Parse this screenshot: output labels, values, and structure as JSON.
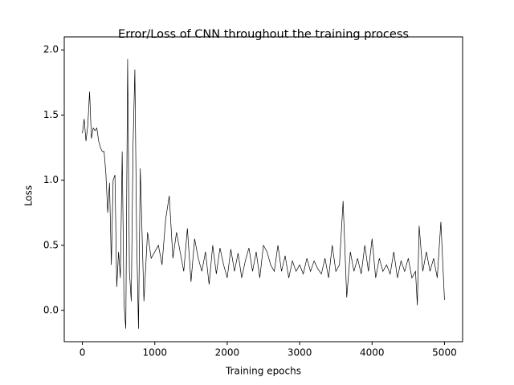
{
  "chart_data": {
    "type": "line",
    "title": "Error/Loss of CNN throughout the training process",
    "x_label": "Training epochs",
    "y_label": "Loss",
    "xlim": [
      -250,
      5250
    ],
    "ylim": [
      -0.24,
      2.1
    ],
    "xticks": [
      0,
      1000,
      2000,
      3000,
      4000,
      5000
    ],
    "yticks": [
      {
        "value": 0,
        "label": "0.0"
      },
      {
        "value": 0.5,
        "label": "0.5"
      },
      {
        "value": 1,
        "label": "1.0"
      },
      {
        "value": 1.5,
        "label": "1.5"
      },
      {
        "value": 2,
        "label": "2.0"
      }
    ],
    "series": [
      {
        "color": "#000000",
        "x": [
          0,
          25,
          50,
          75,
          100,
          125,
          150,
          175,
          200,
          225,
          250,
          275,
          300,
          325,
          350,
          375,
          400,
          425,
          450,
          475,
          500,
          525,
          550,
          575,
          600,
          625,
          650,
          675,
          700,
          725,
          750,
          775,
          800,
          850,
          900,
          950,
          1000,
          1050,
          1100,
          1150,
          1200,
          1250,
          1300,
          1350,
          1400,
          1450,
          1500,
          1550,
          1600,
          1650,
          1700,
          1750,
          1800,
          1850,
          1900,
          1950,
          2000,
          2050,
          2100,
          2150,
          2200,
          2250,
          2300,
          2350,
          2400,
          2450,
          2500,
          2550,
          2600,
          2650,
          2700,
          2750,
          2800,
          2850,
          2900,
          2950,
          3000,
          3050,
          3100,
          3150,
          3200,
          3250,
          3300,
          3350,
          3400,
          3450,
          3500,
          3550,
          3600,
          3650,
          3700,
          3750,
          3800,
          3850,
          3900,
          3950,
          4000,
          4050,
          4100,
          4150,
          4200,
          4250,
          4300,
          4350,
          4400,
          4450,
          4500,
          4550,
          4600,
          4625,
          4650,
          4700,
          4750,
          4800,
          4850,
          4900,
          4950,
          5000
        ],
        "values": [
          1.36,
          1.47,
          1.3,
          1.42,
          1.68,
          1.32,
          1.4,
          1.38,
          1.4,
          1.3,
          1.25,
          1.22,
          1.22,
          1.05,
          0.75,
          0.98,
          0.35,
          1.0,
          1.04,
          0.18,
          0.45,
          0.25,
          1.22,
          0.05,
          -0.14,
          1.93,
          0.3,
          0.07,
          1.27,
          1.85,
          0.55,
          -0.14,
          1.09,
          0.07,
          0.6,
          0.4,
          0.45,
          0.5,
          0.35,
          0.7,
          0.88,
          0.4,
          0.6,
          0.45,
          0.3,
          0.63,
          0.22,
          0.55,
          0.4,
          0.3,
          0.45,
          0.2,
          0.5,
          0.28,
          0.48,
          0.35,
          0.25,
          0.47,
          0.3,
          0.44,
          0.25,
          0.38,
          0.48,
          0.3,
          0.45,
          0.25,
          0.5,
          0.45,
          0.35,
          0.3,
          0.5,
          0.3,
          0.42,
          0.25,
          0.38,
          0.3,
          0.35,
          0.28,
          0.4,
          0.3,
          0.38,
          0.32,
          0.28,
          0.4,
          0.25,
          0.5,
          0.3,
          0.35,
          0.84,
          0.1,
          0.45,
          0.3,
          0.4,
          0.28,
          0.5,
          0.3,
          0.55,
          0.25,
          0.4,
          0.3,
          0.35,
          0.28,
          0.45,
          0.25,
          0.38,
          0.3,
          0.4,
          0.25,
          0.3,
          0.04,
          0.65,
          0.3,
          0.45,
          0.3,
          0.4,
          0.25,
          0.68,
          0.08
        ]
      }
    ]
  }
}
